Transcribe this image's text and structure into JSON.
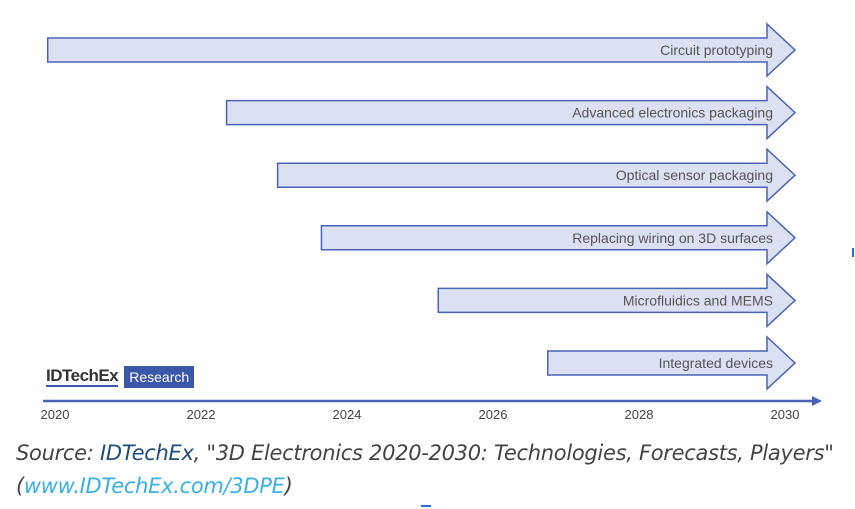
{
  "chart_data": {
    "type": "timeline",
    "xlim": [
      2020,
      2030
    ],
    "x_ticks": [
      "2020",
      "2022",
      "2024",
      "2026",
      "2028",
      "2030"
    ],
    "series": [
      {
        "name": "Circuit prototyping",
        "start": 2019.9,
        "end": 2030
      },
      {
        "name": "Advanced electronics packaging",
        "start": 2022.35,
        "end": 2030
      },
      {
        "name": "Optical sensor packaging",
        "start": 2023.05,
        "end": 2030
      },
      {
        "name": "Replacing wiring on 3D surfaces",
        "start": 2023.65,
        "end": 2030
      },
      {
        "name": "Microfluidics and MEMS",
        "start": 2025.25,
        "end": 2030
      },
      {
        "name": "Integrated devices",
        "start": 2026.75,
        "end": 2030
      }
    ],
    "colors": {
      "fill": "#dbe0f2",
      "stroke": "#4a63b8",
      "axis": "#4a63b8"
    }
  },
  "logo": {
    "name": "IDTechEx",
    "badge": "Research"
  },
  "source": {
    "prefix": "Source: ",
    "brand": "IDTechEx",
    "title": ", \"3D Electronics 2020-2030: Technologies, Forecasts, Players\"",
    "open": "(",
    "link": "www.IDTechEx.com/3DPE",
    "close": ")"
  }
}
